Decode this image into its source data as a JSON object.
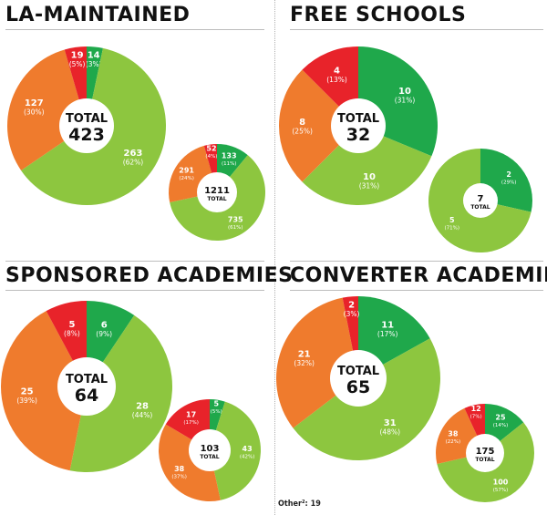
{
  "colors": {
    "green_dark": "#1fa84b",
    "green_light": "#8dc63f",
    "orange": "#ef7b2d",
    "red": "#e8232a"
  },
  "note": "Other²: 19",
  "chart_data": [
    {
      "type": "pie",
      "panel": "la-maintained",
      "title": "LA-MAINTAINED",
      "charts": [
        {
          "total_label": "TOTAL",
          "total": 423,
          "slices": [
            {
              "value": 14,
              "pct": "(3%)",
              "color": "green_dark"
            },
            {
              "value": 263,
              "pct": "(62%)",
              "color": "green_light"
            },
            {
              "value": 127,
              "pct": "(30%)",
              "color": "orange"
            },
            {
              "value": 19,
              "pct": "(5%)",
              "color": "red"
            }
          ]
        },
        {
          "total_label": "TOTAL",
          "total": 1211,
          "slices": [
            {
              "value": 133,
              "pct": "(11%)",
              "color": "green_dark"
            },
            {
              "value": 735,
              "pct": "(61%)",
              "color": "green_light"
            },
            {
              "value": 291,
              "pct": "(24%)",
              "color": "orange"
            },
            {
              "value": 52,
              "pct": "(4%)",
              "color": "red"
            }
          ]
        }
      ]
    },
    {
      "type": "pie",
      "panel": "free-schools",
      "title": "FREE SCHOOLS",
      "charts": [
        {
          "total_label": "TOTAL",
          "total": 32,
          "slices": [
            {
              "value": 10,
              "pct": "(31%)",
              "color": "green_dark"
            },
            {
              "value": 10,
              "pct": "(31%)",
              "color": "green_light"
            },
            {
              "value": 8,
              "pct": "(25%)",
              "color": "orange"
            },
            {
              "value": 4,
              "pct": "(13%)",
              "color": "red"
            }
          ]
        },
        {
          "total_label": "TOTAL",
          "total": 7,
          "slices": [
            {
              "value": 2,
              "pct": "(29%)",
              "color": "green_dark"
            },
            {
              "value": 5,
              "pct": "(71%)",
              "color": "green_light"
            }
          ]
        }
      ]
    },
    {
      "type": "pie",
      "panel": "sponsored-academies",
      "title": "SPONSORED ACADEMIES",
      "charts": [
        {
          "total_label": "TOTAL",
          "total": 64,
          "slices": [
            {
              "value": 6,
              "pct": "(9%)",
              "color": "green_dark"
            },
            {
              "value": 28,
              "pct": "(44%)",
              "color": "green_light"
            },
            {
              "value": 25,
              "pct": "(39%)",
              "color": "orange"
            },
            {
              "value": 5,
              "pct": "(8%)",
              "color": "red"
            }
          ]
        },
        {
          "total_label": "TOTAL",
          "total": 103,
          "slices": [
            {
              "value": 5,
              "pct": "(5%)",
              "color": "green_dark"
            },
            {
              "value": 43,
              "pct": "(42%)",
              "color": "green_light"
            },
            {
              "value": 38,
              "pct": "(37%)",
              "color": "orange"
            },
            {
              "value": 17,
              "pct": "(17%)",
              "color": "red"
            }
          ]
        }
      ]
    },
    {
      "type": "pie",
      "panel": "converter-academies",
      "title": "CONVERTER ACADEMIES",
      "charts": [
        {
          "total_label": "TOTAL",
          "total": 65,
          "slices": [
            {
              "value": 11,
              "pct": "(17%)",
              "color": "green_dark"
            },
            {
              "value": 31,
              "pct": "(48%)",
              "color": "green_light"
            },
            {
              "value": 21,
              "pct": "(32%)",
              "color": "orange"
            },
            {
              "value": 2,
              "pct": "(3%)",
              "color": "red"
            }
          ]
        },
        {
          "total_label": "TOTAL",
          "total": 175,
          "slices": [
            {
              "value": 25,
              "pct": "(14%)",
              "color": "green_dark"
            },
            {
              "value": 100,
              "pct": "(57%)",
              "color": "green_light"
            },
            {
              "value": 38,
              "pct": "(22%)",
              "color": "orange"
            },
            {
              "value": 12,
              "pct": "(7%)",
              "color": "red"
            }
          ]
        }
      ]
    }
  ]
}
